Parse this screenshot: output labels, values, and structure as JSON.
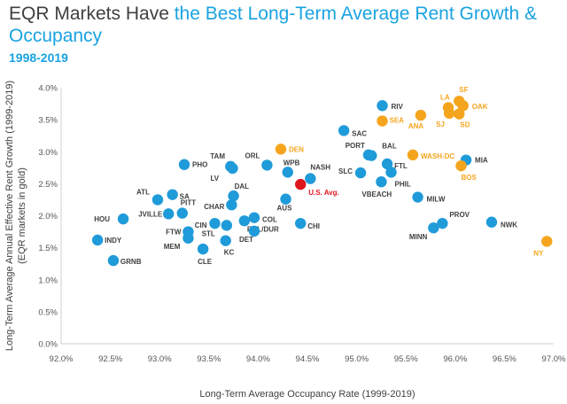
{
  "title_part1": "EQR Markets Have ",
  "title_part2": "the Best Long-Term Average Rent Growth & Occupancy",
  "subtitle": "1998-2019",
  "colors": {
    "blue": "#1f9bd9",
    "gold": "#f5a51d",
    "red": "#e0161e",
    "title_blue": "#19a3e0",
    "label_dark": "#404040"
  },
  "chart_data": {
    "type": "scatter",
    "xlabel": "Long-Term Average Occupancy Rate (1999-2019)",
    "ylabel_line1": "Long-Term Average Annual Effective Rent Growth (1999-2019)",
    "ylabel_line2": "(EQR markets in gold)",
    "xlim": [
      92.0,
      97.0
    ],
    "ylim": [
      0.0,
      4.0
    ],
    "x_ticks": [
      "92.0%",
      "92.5%",
      "93.0%",
      "93.5%",
      "94.0%",
      "94.5%",
      "95.0%",
      "95.5%",
      "96.0%",
      "96.5%",
      "97.0%"
    ],
    "y_ticks": [
      "0.0%",
      "0.5%",
      "1.0%",
      "1.5%",
      "2.0%",
      "2.5%",
      "3.0%",
      "3.5%",
      "4.0%"
    ],
    "grid": false,
    "series": [
      {
        "group": "non-EQR",
        "color": "#1f9bd9",
        "points": [
          {
            "label": "HOU",
            "x": 92.63,
            "y": 1.95
          },
          {
            "label": "INDY",
            "x": 92.37,
            "y": 1.62
          },
          {
            "label": "GRNB",
            "x": 92.53,
            "y": 1.3
          },
          {
            "label": "ATL",
            "x": 92.98,
            "y": 2.25
          },
          {
            "label": "SA",
            "x": 93.13,
            "y": 2.33
          },
          {
            "label": "JVILLE",
            "x": 93.09,
            "y": 2.03
          },
          {
            "label": "PITT",
            "x": 93.23,
            "y": 2.04
          },
          {
            "label": "PHO",
            "x": 93.25,
            "y": 2.8
          },
          {
            "label": "FTW",
            "x": 93.29,
            "y": 1.75
          },
          {
            "label": "MEM",
            "x": 93.29,
            "y": 1.65
          },
          {
            "label": "CLE",
            "x": 93.44,
            "y": 1.48
          },
          {
            "label": "CIN",
            "x": 93.56,
            "y": 1.88
          },
          {
            "label": "STL",
            "x": 93.68,
            "y": 1.85
          },
          {
            "label": "KC",
            "x": 93.67,
            "y": 1.61
          },
          {
            "label": "TAM",
            "x": 93.72,
            "y": 2.77
          },
          {
            "label": "LV",
            "x": 93.74,
            "y": 2.74
          },
          {
            "label": "DAL",
            "x": 93.75,
            "y": 2.31
          },
          {
            "label": "CHAR",
            "x": 93.73,
            "y": 2.17
          },
          {
            "label": "RAL/DUR",
            "x": 93.86,
            "y": 1.92
          },
          {
            "label": "COL",
            "x": 93.96,
            "y": 1.97
          },
          {
            "label": "DET",
            "x": 93.96,
            "y": 1.76
          },
          {
            "label": "ORL",
            "x": 94.09,
            "y": 2.79
          },
          {
            "label": "WPB",
            "x": 94.3,
            "y": 2.68
          },
          {
            "label": "NASH",
            "x": 94.53,
            "y": 2.58
          },
          {
            "label": "AUS",
            "x": 94.28,
            "y": 2.26
          },
          {
            "label": "CHI",
            "x": 94.43,
            "y": 1.88
          },
          {
            "label": "SAC",
            "x": 94.87,
            "y": 3.33
          },
          {
            "label": "RIV",
            "x": 95.26,
            "y": 3.72
          },
          {
            "label": "PORT",
            "x": 95.12,
            "y": 2.95
          },
          {
            "label": "BAL",
            "x": 95.15,
            "y": 2.94
          },
          {
            "label": "SLC",
            "x": 95.04,
            "y": 2.67
          },
          {
            "label": "FTL",
            "x": 95.31,
            "y": 2.81
          },
          {
            "label": "PHIL",
            "x": 95.35,
            "y": 2.68
          },
          {
            "label": "VBEACH",
            "x": 95.25,
            "y": 2.53
          },
          {
            "label": "MIA",
            "x": 96.11,
            "y": 2.87
          },
          {
            "label": "MILW",
            "x": 95.62,
            "y": 2.29
          },
          {
            "label": "PROV",
            "x": 95.87,
            "y": 1.88
          },
          {
            "label": "MINN",
            "x": 95.78,
            "y": 1.81
          },
          {
            "label": "NWK",
            "x": 96.37,
            "y": 1.9
          }
        ]
      },
      {
        "group": "EQR",
        "color": "#f5a51d",
        "points": [
          {
            "label": "DEN",
            "x": 94.23,
            "y": 3.04
          },
          {
            "label": "SEA",
            "x": 95.26,
            "y": 3.48
          },
          {
            "label": "ANA",
            "x": 95.65,
            "y": 3.57
          },
          {
            "label": "LA",
            "x": 95.93,
            "y": 3.69
          },
          {
            "label": "SF",
            "x": 96.04,
            "y": 3.79
          },
          {
            "label": "OAK",
            "x": 96.08,
            "y": 3.72
          },
          {
            "label": "SJ",
            "x": 95.94,
            "y": 3.6
          },
          {
            "label": "SD",
            "x": 96.04,
            "y": 3.59
          },
          {
            "label": "WASH-DC",
            "x": 95.57,
            "y": 2.95
          },
          {
            "label": "BOS",
            "x": 96.06,
            "y": 2.78
          },
          {
            "label": "NY",
            "x": 96.93,
            "y": 1.6
          }
        ]
      },
      {
        "group": "U.S. Avg.",
        "color": "#e0161e",
        "points": [
          {
            "label": "U.S. Avg.",
            "x": 94.43,
            "y": 2.49
          }
        ]
      }
    ]
  }
}
